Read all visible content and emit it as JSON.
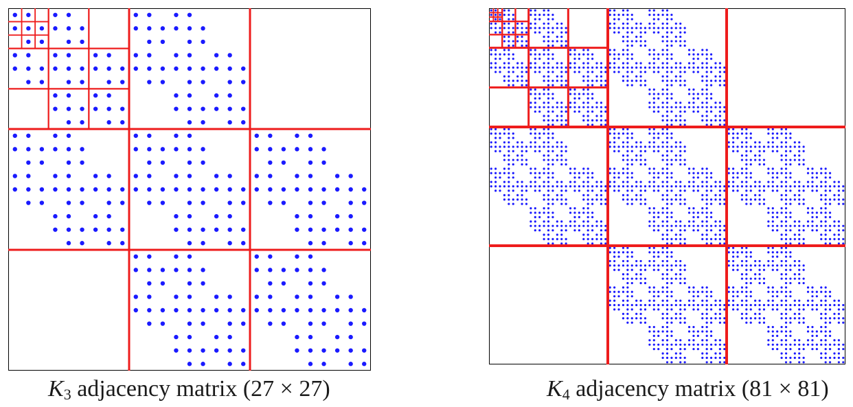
{
  "figures": [
    {
      "id": "k3",
      "caption": {
        "var": "K",
        "sub": "3",
        "text": " adjacency matrix (27 × 27)"
      },
      "matrix": {
        "n": 27
      }
    },
    {
      "id": "k4",
      "caption": {
        "var": "K",
        "sub": "4",
        "text": " adjacency matrix (81 × 81)"
      },
      "matrix": {
        "n": 81
      }
    }
  ],
  "colors": {
    "dot": "#1a1aff",
    "grid": "#ee1c1c",
    "frame": "#000000",
    "background": "#ffffff"
  }
}
